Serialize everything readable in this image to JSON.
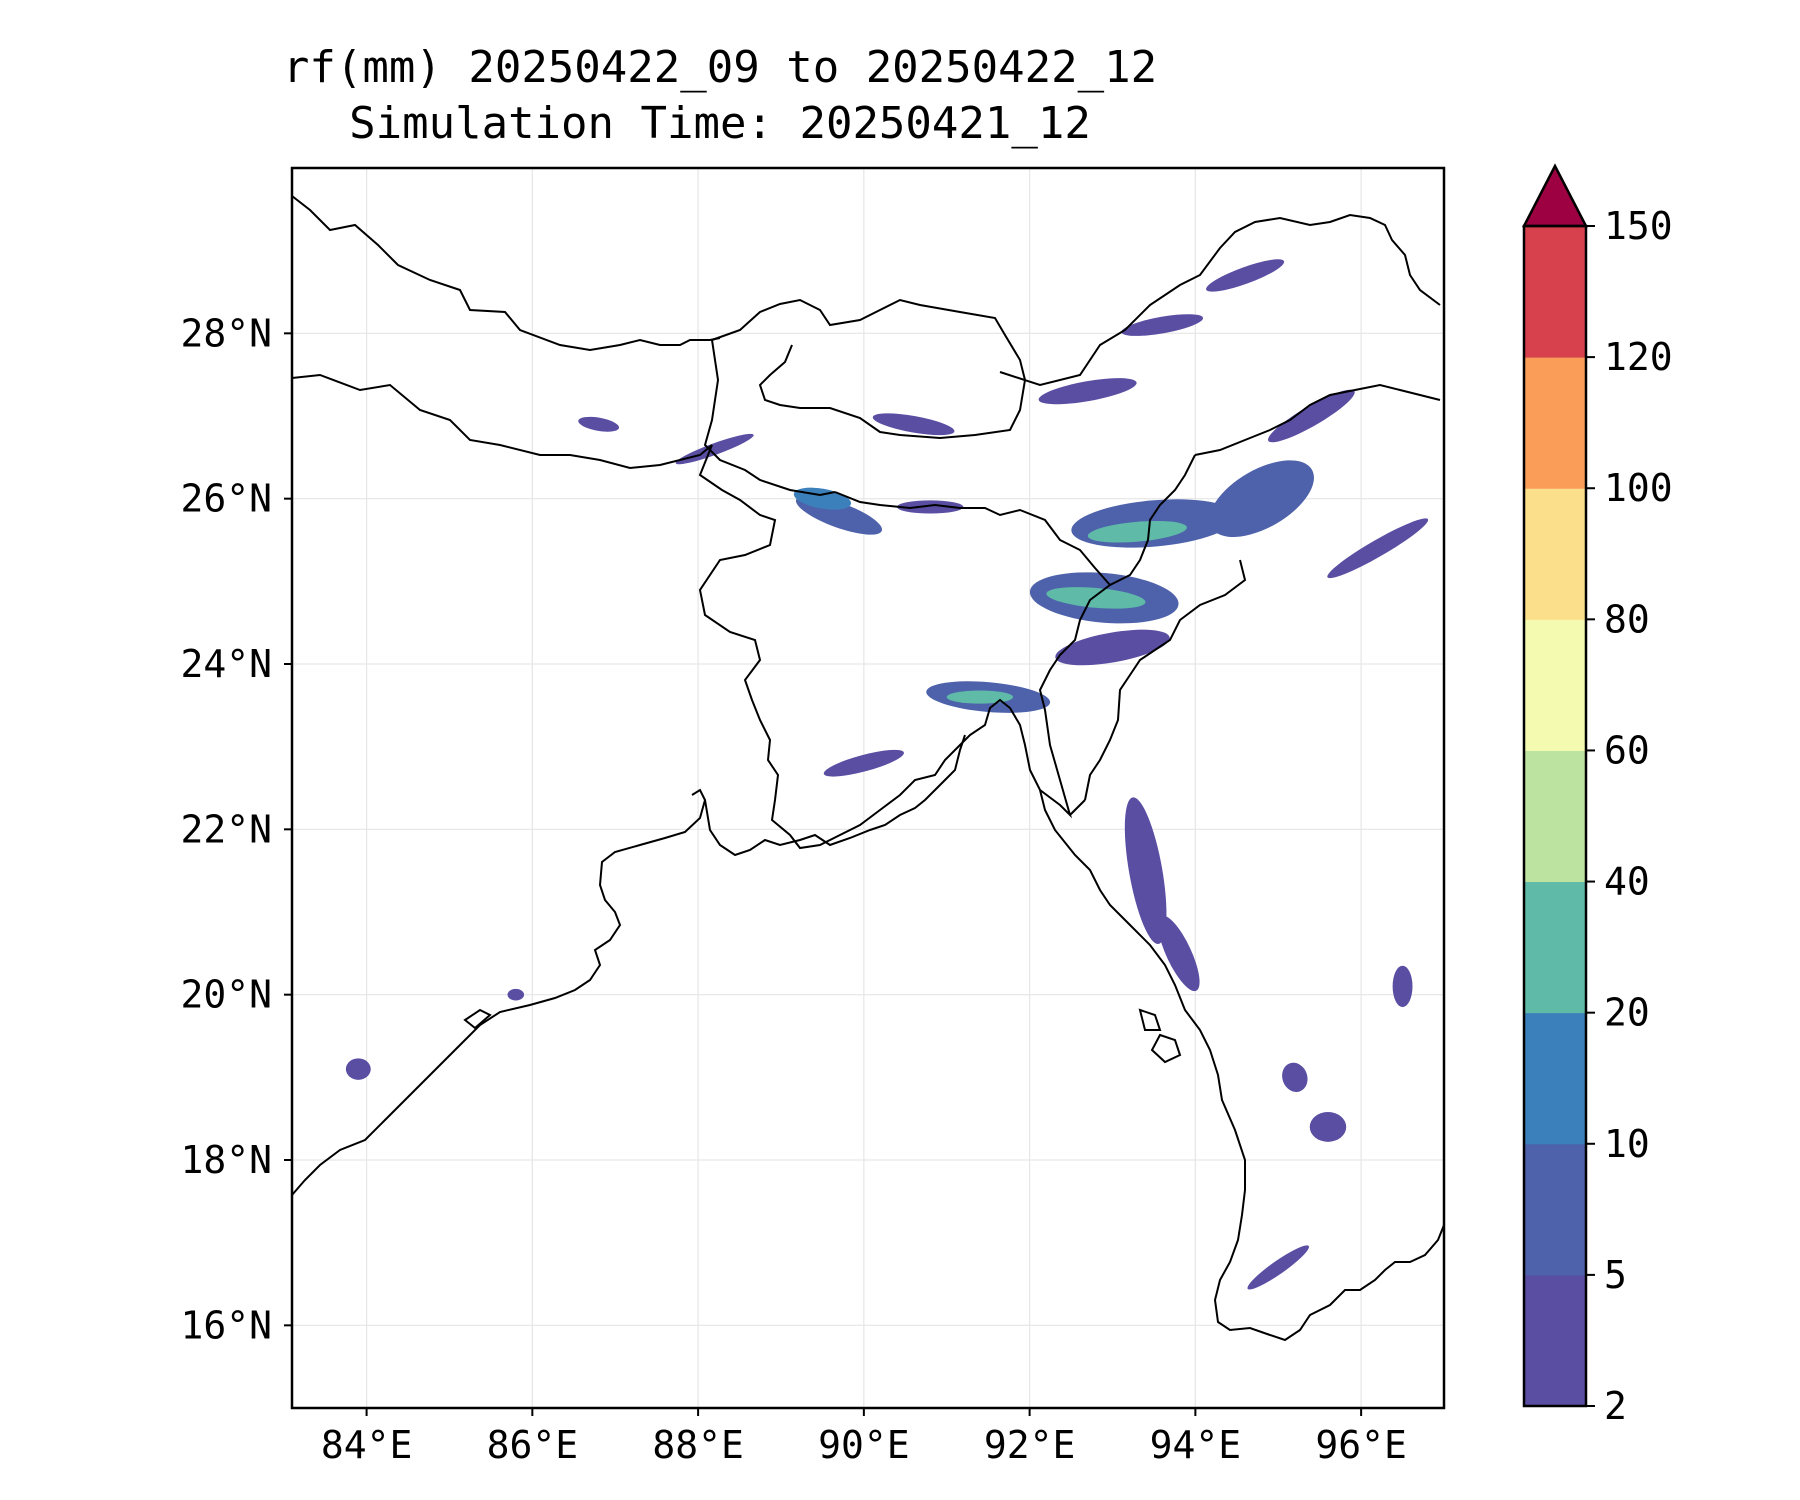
{
  "title": {
    "line1": "rf(mm) 20250422_09 to 20250422_12",
    "line2": "Simulation Time: 20250421_12"
  },
  "map": {
    "lon_range": [
      83.1,
      97.0
    ],
    "lat_range": [
      15.0,
      30.0
    ],
    "lon_ticks": [
      84,
      86,
      88,
      90,
      92,
      94,
      96
    ],
    "lat_ticks": [
      16,
      18,
      20,
      22,
      24,
      26,
      28
    ],
    "lon_labels": [
      "84°E",
      "86°E",
      "88°E",
      "90°E",
      "92°E",
      "94°E",
      "96°E"
    ],
    "lat_labels": [
      "16°N",
      "18°N",
      "20°N",
      "22°N",
      "24°N",
      "26°N",
      "28°N"
    ],
    "gridlines": true
  },
  "colorbar": {
    "levels": [
      2,
      5,
      10,
      20,
      40,
      60,
      80,
      100,
      120,
      150
    ],
    "level_labels": [
      "2",
      "5",
      "10",
      "20",
      "40",
      "60",
      "80",
      "100",
      "120",
      "150"
    ],
    "colors": [
      "#5a4ea3",
      "#4e62ab",
      "#3b80bb",
      "#5fbaa8",
      "#bde3a1",
      "#f4fbb0",
      "#fbdf8a",
      "#f99d59",
      "#d7414e"
    ],
    "extend_color": "#9e0142",
    "extend": "max"
  },
  "rain_patches": [
    {
      "lon": 89.7,
      "lat": 25.8,
      "rx": 0.55,
      "ry": 0.15,
      "rot": 20,
      "level": 1
    },
    {
      "lon": 89.5,
      "lat": 26.0,
      "rx": 0.35,
      "ry": 0.12,
      "rot": 10,
      "level": 2
    },
    {
      "lon": 90.8,
      "lat": 25.9,
      "rx": 0.4,
      "ry": 0.08,
      "rot": 0,
      "level": 0
    },
    {
      "lon": 88.2,
      "lat": 26.6,
      "rx": 0.5,
      "ry": 0.07,
      "rot": -20,
      "level": 0
    },
    {
      "lon": 86.8,
      "lat": 26.9,
      "rx": 0.25,
      "ry": 0.08,
      "rot": 10,
      "level": 0
    },
    {
      "lon": 90.6,
      "lat": 26.9,
      "rx": 0.5,
      "ry": 0.1,
      "rot": 10,
      "level": 0
    },
    {
      "lon": 92.7,
      "lat": 27.3,
      "rx": 0.6,
      "ry": 0.12,
      "rot": -10,
      "level": 0
    },
    {
      "lon": 93.6,
      "lat": 28.1,
      "rx": 0.5,
      "ry": 0.1,
      "rot": -10,
      "level": 0
    },
    {
      "lon": 94.6,
      "lat": 28.7,
      "rx": 0.5,
      "ry": 0.1,
      "rot": -20,
      "level": 0
    },
    {
      "lon": 95.4,
      "lat": 27.0,
      "rx": 0.6,
      "ry": 0.12,
      "rot": -30,
      "level": 0
    },
    {
      "lon": 93.5,
      "lat": 25.7,
      "rx": 1.0,
      "ry": 0.28,
      "rot": -5,
      "level": 1
    },
    {
      "lon": 93.3,
      "lat": 25.6,
      "rx": 0.6,
      "ry": 0.12,
      "rot": -5,
      "level": 3
    },
    {
      "lon": 94.8,
      "lat": 26.0,
      "rx": 0.7,
      "ry": 0.35,
      "rot": -30,
      "level": 1
    },
    {
      "lon": 96.2,
      "lat": 25.4,
      "rx": 0.7,
      "ry": 0.1,
      "rot": -30,
      "level": 0
    },
    {
      "lon": 92.9,
      "lat": 24.8,
      "rx": 0.9,
      "ry": 0.3,
      "rot": 5,
      "level": 1
    },
    {
      "lon": 92.8,
      "lat": 24.8,
      "rx": 0.6,
      "ry": 0.12,
      "rot": 5,
      "level": 3
    },
    {
      "lon": 93.0,
      "lat": 24.2,
      "rx": 0.7,
      "ry": 0.18,
      "rot": -10,
      "level": 0
    },
    {
      "lon": 91.5,
      "lat": 23.6,
      "rx": 0.75,
      "ry": 0.18,
      "rot": 5,
      "level": 1
    },
    {
      "lon": 91.4,
      "lat": 23.6,
      "rx": 0.4,
      "ry": 0.08,
      "rot": 0,
      "level": 3
    },
    {
      "lon": 90.0,
      "lat": 22.8,
      "rx": 0.5,
      "ry": 0.1,
      "rot": -15,
      "level": 0
    },
    {
      "lon": 93.4,
      "lat": 21.5,
      "rx": 0.2,
      "ry": 0.9,
      "rot": -10,
      "level": 0
    },
    {
      "lon": 93.8,
      "lat": 20.5,
      "rx": 0.15,
      "ry": 0.5,
      "rot": -25,
      "level": 0
    },
    {
      "lon": 95.6,
      "lat": 18.4,
      "rx": 0.22,
      "ry": 0.18,
      "rot": 0,
      "level": 0
    },
    {
      "lon": 95.2,
      "lat": 19.0,
      "rx": 0.15,
      "ry": 0.18,
      "rot": -20,
      "level": 0
    },
    {
      "lon": 96.5,
      "lat": 20.1,
      "rx": 0.12,
      "ry": 0.25,
      "rot": 0,
      "level": 0
    },
    {
      "lon": 95.0,
      "lat": 16.7,
      "rx": 0.45,
      "ry": 0.08,
      "rot": -35,
      "level": 0
    },
    {
      "lon": 83.9,
      "lat": 19.1,
      "rx": 0.15,
      "ry": 0.13,
      "rot": 0,
      "level": 0
    },
    {
      "lon": 85.8,
      "lat": 20.0,
      "rx": 0.1,
      "ry": 0.07,
      "rot": 0,
      "level": 0
    }
  ]
}
